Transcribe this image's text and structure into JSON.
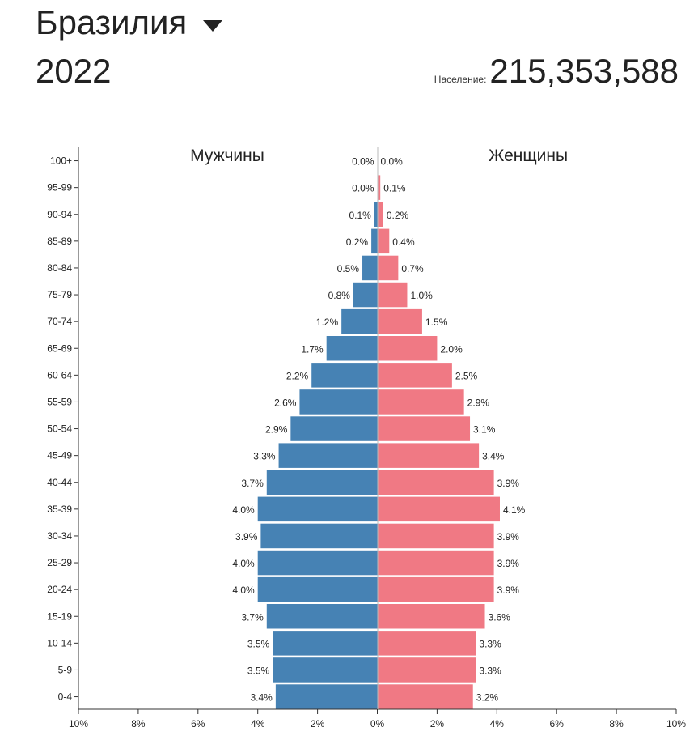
{
  "header": {
    "country": "Бразилия",
    "year": "2022",
    "population_label": "Население:",
    "population_value": "215,353,588"
  },
  "colors": {
    "male": "#4682b4",
    "female": "#f07984",
    "axis": "#333333"
  },
  "chart_data": {
    "type": "bar",
    "orientation": "horizontal",
    "series_left_label": "Мужчины",
    "series_right_label": "Женщины",
    "categories": [
      "100+",
      "95-99",
      "90-94",
      "85-89",
      "80-84",
      "75-79",
      "70-74",
      "65-69",
      "60-64",
      "55-59",
      "50-54",
      "45-49",
      "40-44",
      "35-39",
      "30-34",
      "25-29",
      "20-24",
      "15-19",
      "10-14",
      "5-9",
      "0-4"
    ],
    "series": [
      {
        "name": "Мужчины",
        "values": [
          0.0,
          0.0,
          0.1,
          0.2,
          0.5,
          0.8,
          1.2,
          1.7,
          2.2,
          2.6,
          2.9,
          3.3,
          3.7,
          4.0,
          3.9,
          4.0,
          4.0,
          3.7,
          3.5,
          3.5,
          3.4
        ],
        "labels": [
          "0.0%",
          "0.0%",
          "0.1%",
          "0.2%",
          "0.5%",
          "0.8%",
          "1.2%",
          "1.7%",
          "2.2%",
          "2.6%",
          "2.9%",
          "3.3%",
          "3.7%",
          "4.0%",
          "3.9%",
          "4.0%",
          "4.0%",
          "3.7%",
          "3.5%",
          "3.5%",
          "3.4%"
        ]
      },
      {
        "name": "Женщины",
        "values": [
          0.0,
          0.1,
          0.2,
          0.4,
          0.7,
          1.0,
          1.5,
          2.0,
          2.5,
          2.9,
          3.1,
          3.4,
          3.9,
          4.1,
          3.9,
          3.9,
          3.9,
          3.6,
          3.3,
          3.3,
          3.2
        ],
        "labels": [
          "0.0%",
          "0.1%",
          "0.2%",
          "0.4%",
          "0.7%",
          "1.0%",
          "1.5%",
          "2.0%",
          "2.5%",
          "2.9%",
          "3.1%",
          "3.4%",
          "3.9%",
          "4.1%",
          "3.9%",
          "3.9%",
          "3.9%",
          "3.6%",
          "3.3%",
          "3.3%",
          "3.2%"
        ]
      }
    ],
    "xlim": [
      -10,
      10
    ],
    "x_ticks": [
      -10,
      -8,
      -6,
      -4,
      -2,
      0,
      2,
      4,
      6,
      8,
      10
    ],
    "x_tick_labels": [
      "10%",
      "8%",
      "6%",
      "4%",
      "2%",
      "0%",
      "2%",
      "4%",
      "6%",
      "8%",
      "10%"
    ],
    "grid": false,
    "legend": "top-inline"
  }
}
